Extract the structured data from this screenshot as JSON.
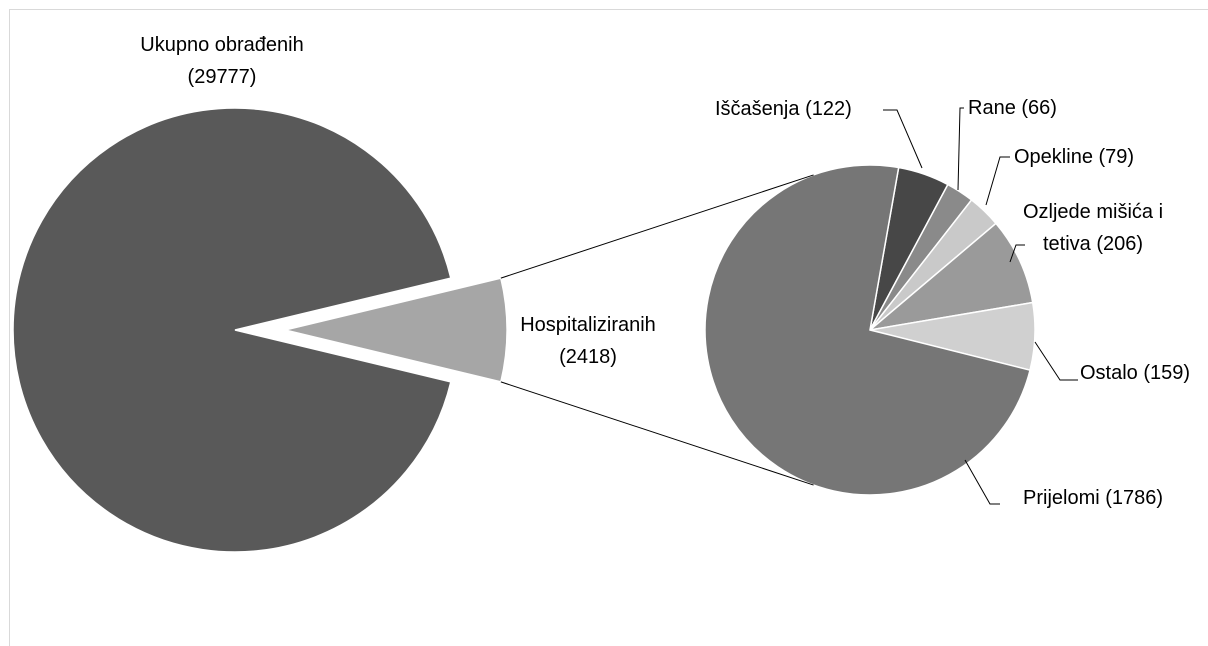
{
  "chart_data": {
    "type": "pie-of-pie",
    "categories": [
      "Ukupno obrađenih",
      "Hospitaliziranih"
    ],
    "values": [
      29777,
      2418
    ],
    "value_labels": [
      "(29777)",
      "(2418)"
    ],
    "colors": [
      "#595959",
      "#a6a6a6"
    ],
    "detail": {
      "categories": [
        "Iščašenja",
        "Rane",
        "Opekline",
        "Ozljede mišića i tetiva",
        "Ostalo",
        "Prijelomi"
      ],
      "values": [
        122,
        66,
        79,
        206,
        159,
        1786
      ],
      "value_labels": [
        "(122)",
        "(66)",
        "(79)",
        "(206)",
        "(159)",
        "(1786)"
      ],
      "colors": [
        "#474747",
        "#8a8a8a",
        "#c9c9c9",
        "#9a9a9a",
        "#d0d0d0",
        "#767676"
      ]
    }
  }
}
